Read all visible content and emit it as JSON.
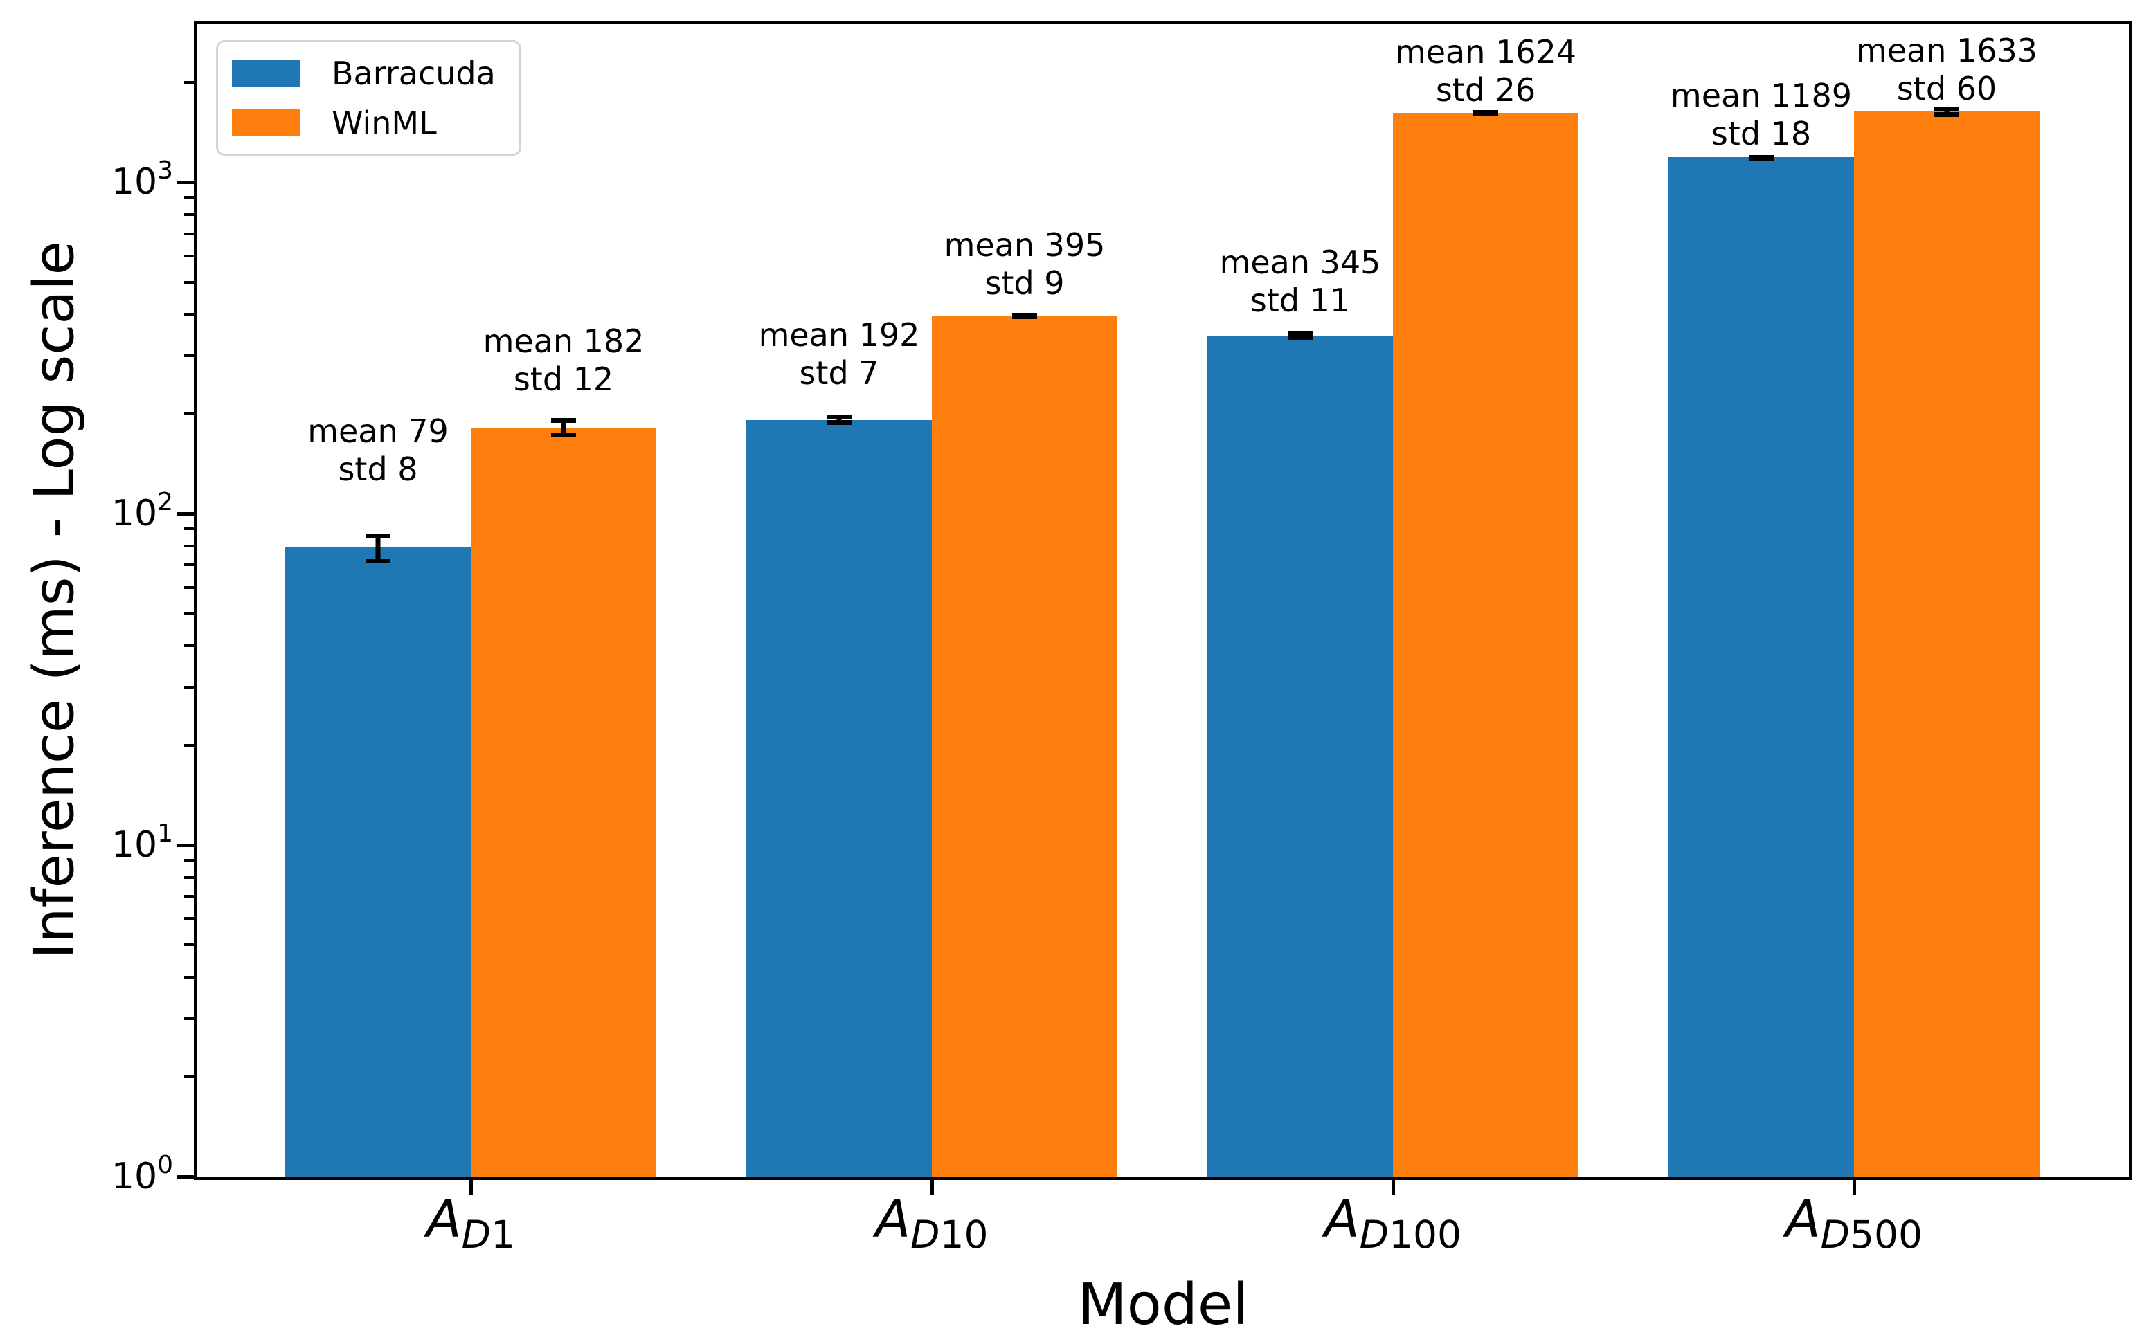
{
  "figure": {
    "background": "#ffffff"
  },
  "chart_data": {
    "type": "bar",
    "yscale": "log",
    "title": "",
    "xlabel": "Model",
    "ylabel": "Inference (ms) - Log scale",
    "ylim": [
      1,
      3000
    ],
    "grid": false,
    "legend_position": "upper left",
    "error_bars": true,
    "bar_colors": {
      "Barracuda": "#1f77b4",
      "WinML": "#ff7f0e"
    },
    "categories": [
      {
        "main": "A",
        "sub_var": "D",
        "sub_num": "1"
      },
      {
        "main": "A",
        "sub_var": "D",
        "sub_num": "10"
      },
      {
        "main": "A",
        "sub_var": "D",
        "sub_num": "100"
      },
      {
        "main": "A",
        "sub_var": "D",
        "sub_num": "500"
      }
    ],
    "y_ticks": [
      {
        "base": "10",
        "exp": "0",
        "value": 1
      },
      {
        "base": "10",
        "exp": "1",
        "value": 10
      },
      {
        "base": "10",
        "exp": "2",
        "value": 100
      },
      {
        "base": "10",
        "exp": "3",
        "value": 1000
      }
    ],
    "series": [
      {
        "name": "Barracuda",
        "color": "#1f77b4",
        "points": [
          {
            "mean": 79,
            "std": 8,
            "label": "mean 79\nstd 8"
          },
          {
            "mean": 192,
            "std": 7,
            "label": "mean 192\nstd 7"
          },
          {
            "mean": 345,
            "std": 11,
            "label": "mean 345\nstd 11"
          },
          {
            "mean": 1189,
            "std": 18,
            "label": "mean 1189\nstd 18"
          }
        ]
      },
      {
        "name": "WinML",
        "color": "#ff7f0e",
        "points": [
          {
            "mean": 182,
            "std": 12,
            "label": "mean 182\nstd 12"
          },
          {
            "mean": 395,
            "std": 9,
            "label": "mean 395\nstd 9"
          },
          {
            "mean": 1624,
            "std": 26,
            "label": "mean 1624\nstd 26"
          },
          {
            "mean": 1633,
            "std": 60,
            "label": "mean 1633\nstd 60"
          }
        ]
      }
    ]
  }
}
